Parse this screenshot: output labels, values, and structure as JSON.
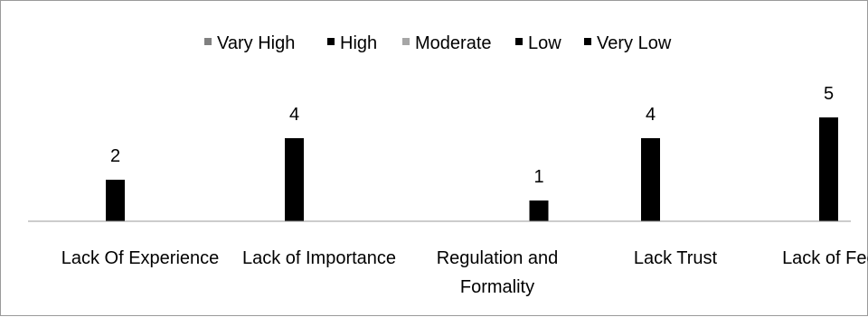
{
  "chart_data": {
    "type": "bar",
    "categories": [
      [
        "Lack Of Experience"
      ],
      [
        "Lack of Importance"
      ],
      [
        "Regulation and",
        "Formality"
      ],
      [
        "Lack Trust"
      ],
      [
        "Lack of Feedback"
      ]
    ],
    "series": [
      {
        "name": "Vary High",
        "color": "#808080",
        "values": [
          null,
          null,
          null,
          null,
          null
        ]
      },
      {
        "name": "High",
        "color": "#000000",
        "values": [
          2,
          4,
          null,
          4,
          5
        ]
      },
      {
        "name": "Moderate",
        "color": "#a6a6a6",
        "values": [
          null,
          null,
          null,
          null,
          null
        ]
      },
      {
        "name": "Low",
        "color": "#000000",
        "values": [
          null,
          null,
          null,
          null,
          null
        ]
      },
      {
        "name": "Very Low",
        "color": "#000000",
        "values": [
          null,
          null,
          1,
          null,
          null
        ]
      }
    ],
    "data_labels": true,
    "ylim": [
      0,
      5.5
    ],
    "grid": false,
    "legend_position": "top"
  }
}
